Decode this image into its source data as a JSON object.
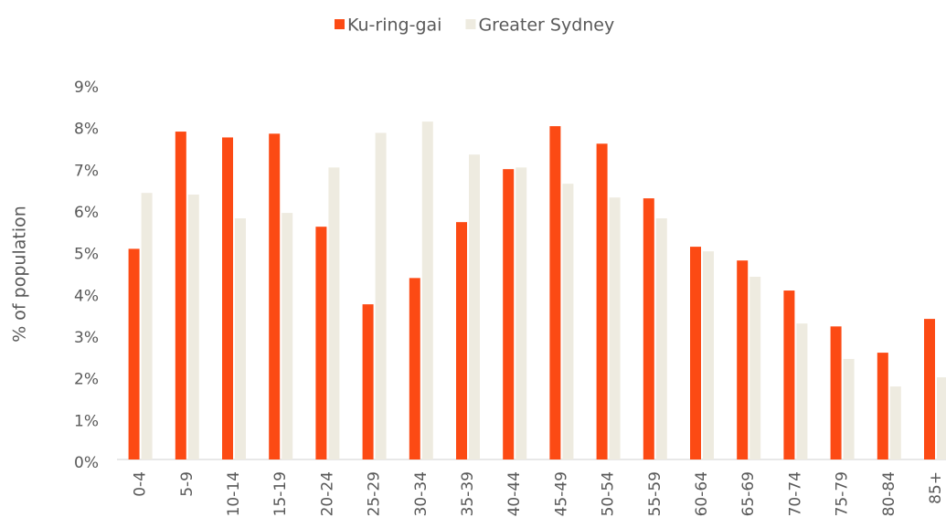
{
  "chart_data": {
    "type": "bar",
    "y_label": "% of population",
    "categories": [
      "0-4",
      "5-9",
      "10-14",
      "15-19",
      "20-24",
      "25-29",
      "30-34",
      "35-39",
      "40-44",
      "45-49",
      "50-54",
      "55-59",
      "60-64",
      "65-69",
      "70-74",
      "75-79",
      "80-84",
      "85+"
    ],
    "series": [
      {
        "name": "Ku-ring-gai",
        "color": "#fc4a14",
        "values": [
          5.05,
          7.86,
          7.72,
          7.81,
          5.58,
          3.72,
          4.35,
          5.69,
          6.96,
          7.99,
          7.57,
          6.26,
          5.1,
          4.77,
          4.05,
          3.19,
          2.56,
          3.37
        ]
      },
      {
        "name": "Greater Sydney",
        "color": "#eeebe0",
        "values": [
          6.39,
          6.35,
          5.78,
          5.91,
          7.0,
          7.83,
          8.1,
          7.31,
          7.0,
          6.61,
          6.28,
          5.78,
          4.99,
          4.38,
          3.26,
          2.41,
          1.75,
          1.97
        ]
      }
    ],
    "ylim": [
      0,
      9
    ],
    "yticks": [
      {
        "value": 0,
        "label": "0%"
      },
      {
        "value": 1,
        "label": "1%"
      },
      {
        "value": 2,
        "label": "2%"
      },
      {
        "value": 3,
        "label": "3%"
      },
      {
        "value": 4,
        "label": "4%"
      },
      {
        "value": 5,
        "label": "5%"
      },
      {
        "value": 6,
        "label": "6%"
      },
      {
        "value": 7,
        "label": "7%"
      },
      {
        "value": 8,
        "label": "8%"
      },
      {
        "value": 9,
        "label": "9%"
      }
    ],
    "legend": "top"
  }
}
